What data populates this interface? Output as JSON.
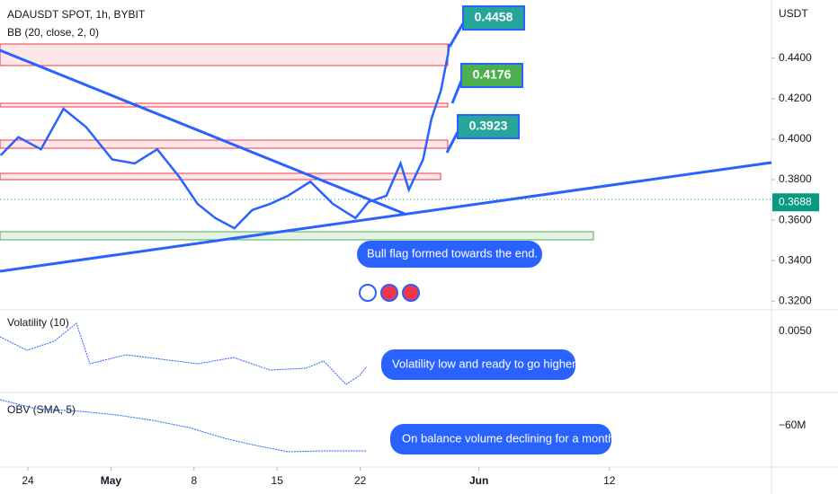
{
  "header": {
    "symbol": "ADAUSDT SPOT, 1h, BYBIT",
    "indicator": "BB (20, close, 2, 0)",
    "currency": "USDT"
  },
  "price_chart": {
    "type": "line",
    "color": "#2962ff",
    "x": [
      -2.3,
      -0.8,
      1.1,
      3.0,
      4.9,
      7.1,
      9.0,
      10.9,
      12.8,
      14.3,
      15.8,
      17.4,
      18.9,
      20.4,
      21.9,
      23.8,
      25.7,
      27.6,
      28.7,
      30.2,
      31.4,
      32.1,
      33.3,
      34.0,
      34.8,
      35.4,
      35.5
    ],
    "values": [
      0.392,
      0.401,
      0.395,
      0.415,
      0.406,
      0.39,
      0.388,
      0.395,
      0.381,
      0.368,
      0.361,
      0.356,
      0.365,
      0.368,
      0.372,
      0.379,
      0.368,
      0.361,
      0.369,
      0.372,
      0.388,
      0.375,
      0.39,
      0.41,
      0.424,
      0.442,
      0.447
    ],
    "xlim": [
      -2.35,
      62.65
    ],
    "ylim": [
      0.4687,
      0.3157
    ],
    "yticks": [
      {
        "value": 0.44,
        "label": "0.4400"
      },
      {
        "value": 0.42,
        "label": "0.4200"
      },
      {
        "value": 0.4,
        "label": "0.4000"
      },
      {
        "value": 0.38,
        "label": "0.3800"
      },
      {
        "value": 0.36,
        "label": "0.3600"
      },
      {
        "value": 0.34,
        "label": "0.3400"
      },
      {
        "value": 0.32,
        "label": "0.3200"
      }
    ],
    "xticks": [
      {
        "value": 0,
        "label": "24"
      },
      {
        "value": 7,
        "label": "May"
      },
      {
        "value": 14,
        "label": "8"
      },
      {
        "value": 21,
        "label": "15"
      },
      {
        "value": 28,
        "label": "22"
      },
      {
        "value": 38,
        "label": "Jun"
      },
      {
        "value": 49,
        "label": "12"
      }
    ],
    "last_price": {
      "value": 0.3688,
      "label": "0.3688"
    },
    "targets": [
      {
        "value": 0.4458,
        "label": "0.4458"
      },
      {
        "value": 0.4176,
        "label": "0.4176"
      },
      {
        "value": 0.3923,
        "label": "0.3923"
      }
    ]
  },
  "notes": {
    "bull_flag": "Bull flag  formed towards the end.",
    "volatility": "Volatility low and ready to go higher",
    "obv": "On balance volume declining for a month"
  },
  "volatility_pane": {
    "title": "Volatility (10)",
    "tick": "0.0050"
  },
  "obv_pane": {
    "title": "OBV (SMA, 5)",
    "tick": "−60M"
  }
}
